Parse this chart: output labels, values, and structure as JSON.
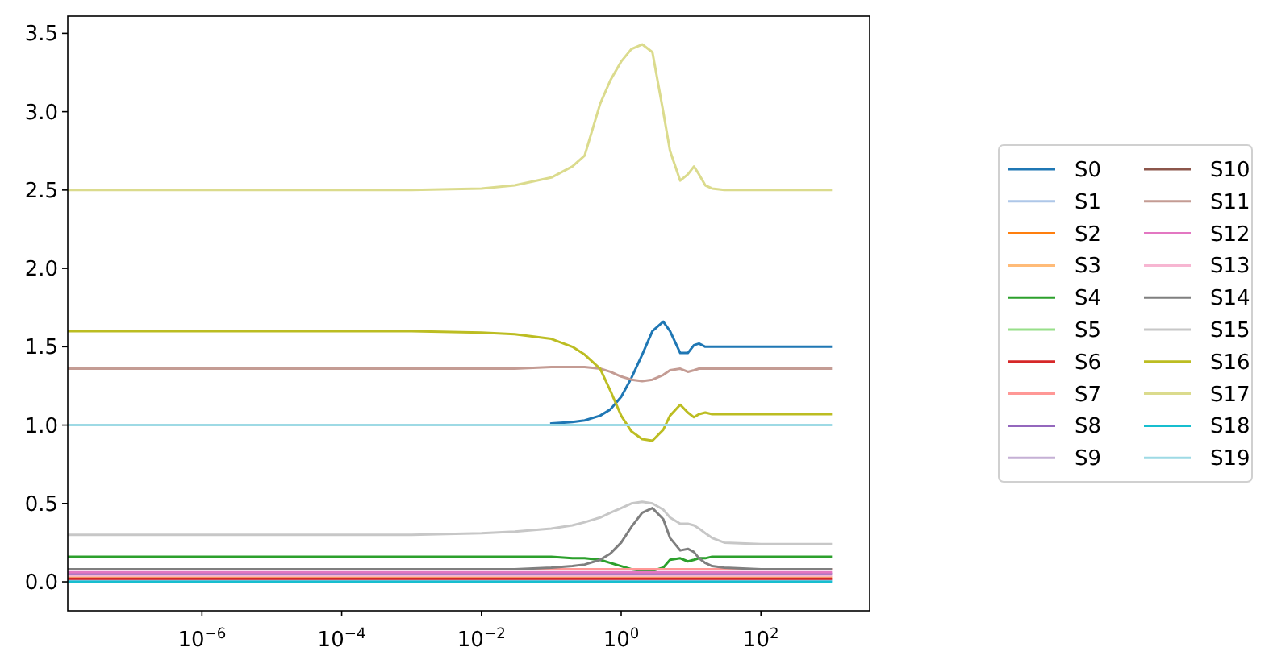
{
  "chart_data": {
    "type": "line",
    "log": "x",
    "legend": "right",
    "grid": false,
    "xlim": [
      1.2e-08,
      3600
    ],
    "ylim": [
      -0.185,
      3.61
    ],
    "xticks": [
      {
        "value": 1e-06,
        "label": "10$^{−6}$"
      },
      {
        "value": 0.0001,
        "label": "10$^{−4}$"
      },
      {
        "value": 0.01,
        "label": "10$^{−2}$"
      },
      {
        "value": 1,
        "label": "10$^{0}$"
      },
      {
        "value": 100,
        "label": "10$^{2}$"
      }
    ],
    "yticks": [
      {
        "value": 0,
        "label": "0.0"
      },
      {
        "value": 0.5,
        "label": "0.5"
      },
      {
        "value": 1,
        "label": "1.0"
      },
      {
        "value": 1.5,
        "label": "1.5"
      },
      {
        "value": 2,
        "label": "2.0"
      },
      {
        "value": 2.5,
        "label": "2.5"
      },
      {
        "value": 3,
        "label": "3.0"
      },
      {
        "value": 3.5,
        "label": "3.5"
      }
    ],
    "x": [
      1.2e-08,
      0.001,
      0.01,
      0.03,
      0.1,
      0.2,
      0.3,
      0.5,
      0.7,
      1,
      1.4,
      2,
      2.8,
      4,
      5,
      7,
      9,
      11,
      13,
      16,
      20,
      30,
      100,
      1000
    ],
    "series": [
      {
        "name": "S0",
        "color": "#1f77b4",
        "values": [
          null,
          null,
          null,
          null,
          1.01,
          1.02,
          1.03,
          1.06,
          1.1,
          1.18,
          1.3,
          1.45,
          1.6,
          1.66,
          1.6,
          1.46,
          1.46,
          1.51,
          1.52,
          1.5,
          1.5,
          1.5,
          1.5,
          1.5
        ]
      },
      {
        "name": "S1",
        "color": "#aec7e8",
        "values": [
          0.01,
          0.01,
          0.01,
          0.01,
          0.01,
          0.01,
          0.01,
          0.01,
          0.01,
          0.01,
          0.01,
          0.01,
          0.01,
          0.01,
          0.01,
          0.01,
          0.01,
          0.01,
          0.01,
          0.01,
          0.01,
          0.01,
          0.01,
          0.01
        ]
      },
      {
        "name": "S2",
        "color": "#ff7f0e",
        "values": [
          null,
          null,
          null,
          null,
          null,
          null,
          null,
          null,
          null,
          null,
          null,
          null,
          null,
          null,
          null,
          null,
          null,
          null,
          null,
          null,
          null,
          null,
          null,
          null
        ]
      },
      {
        "name": "S3",
        "color": "#ffbb78",
        "values": [
          0.03,
          0.03,
          0.03,
          0.03,
          0.03,
          0.03,
          0.03,
          0.03,
          0.03,
          0.03,
          0.03,
          0.03,
          0.03,
          0.03,
          0.03,
          0.03,
          0.03,
          0.03,
          0.03,
          0.03,
          0.03,
          0.03,
          0.03,
          0.03
        ]
      },
      {
        "name": "S4",
        "color": "#2ca02c",
        "values": [
          0.16,
          0.16,
          0.16,
          0.16,
          0.16,
          0.15,
          0.15,
          0.14,
          0.12,
          0.1,
          0.08,
          0.07,
          0.07,
          0.09,
          0.14,
          0.15,
          0.13,
          0.14,
          0.15,
          0.15,
          0.16,
          0.16,
          0.16,
          0.16
        ]
      },
      {
        "name": "S5",
        "color": "#98df8a",
        "values": [
          null,
          null,
          null,
          null,
          null,
          null,
          null,
          null,
          null,
          null,
          null,
          null,
          null,
          null,
          null,
          null,
          null,
          null,
          null,
          null,
          null,
          null,
          null,
          null
        ]
      },
      {
        "name": "S6",
        "color": "#d62728",
        "values": [
          0.02,
          0.02,
          0.02,
          0.02,
          0.02,
          0.02,
          0.02,
          0.02,
          0.02,
          0.02,
          0.02,
          0.02,
          0.02,
          0.02,
          0.02,
          0.02,
          0.02,
          0.02,
          0.02,
          0.02,
          0.02,
          0.02,
          0.02,
          0.02
        ]
      },
      {
        "name": "S7",
        "color": "#ff9896",
        "values": [
          null,
          null,
          0.08,
          0.08,
          0.08,
          0.08,
          0.08,
          0.08,
          0.08,
          0.08,
          0.08,
          0.08,
          0.08,
          0.08,
          0.08,
          0.08,
          0.08,
          0.08,
          0.08,
          0.08,
          0.08,
          0.08,
          0.08,
          0.08
        ]
      },
      {
        "name": "S8",
        "color": "#9467bd",
        "values": [
          0.05,
          0.05,
          0.05,
          0.05,
          0.05,
          0.05,
          0.05,
          0.05,
          0.05,
          0.05,
          0.05,
          0.05,
          0.05,
          0.05,
          0.05,
          0.05,
          0.05,
          0.05,
          0.05,
          0.05,
          0.05,
          0.05,
          0.05,
          0.05
        ]
      },
      {
        "name": "S9",
        "color": "#c5b0d5",
        "values": [
          null,
          null,
          null,
          null,
          null,
          null,
          null,
          null,
          null,
          null,
          null,
          null,
          null,
          null,
          null,
          null,
          null,
          null,
          null,
          null,
          null,
          null,
          null,
          null
        ]
      },
      {
        "name": "S10",
        "color": "#8c564b",
        "values": [
          null,
          null,
          null,
          null,
          null,
          null,
          null,
          null,
          null,
          null,
          null,
          null,
          null,
          null,
          null,
          null,
          null,
          null,
          null,
          null,
          null,
          null,
          null,
          null
        ]
      },
      {
        "name": "S11",
        "color": "#c49c94",
        "values": [
          1.36,
          1.36,
          1.36,
          1.36,
          1.37,
          1.37,
          1.37,
          1.36,
          1.34,
          1.31,
          1.29,
          1.28,
          1.29,
          1.32,
          1.35,
          1.36,
          1.34,
          1.35,
          1.36,
          1.36,
          1.36,
          1.36,
          1.36,
          1.36
        ]
      },
      {
        "name": "S12",
        "color": "#e377c2",
        "values": [
          0.06,
          0.06,
          0.06,
          0.06,
          0.06,
          0.06,
          0.06,
          0.06,
          0.06,
          0.06,
          0.06,
          0.06,
          0.06,
          0.06,
          0.06,
          0.06,
          0.06,
          0.06,
          0.06,
          0.06,
          0.06,
          0.06,
          0.06,
          0.06
        ]
      },
      {
        "name": "S13",
        "color": "#f7b6d2",
        "values": [
          0.04,
          0.04,
          0.04,
          0.04,
          0.04,
          0.04,
          0.04,
          0.04,
          0.04,
          0.04,
          0.04,
          0.04,
          0.04,
          0.04,
          0.04,
          0.04,
          0.04,
          0.04,
          0.04,
          0.04,
          0.04,
          0.04,
          0.04,
          0.04
        ]
      },
      {
        "name": "S14",
        "color": "#7f7f7f",
        "values": [
          0.08,
          0.08,
          0.08,
          0.08,
          0.09,
          0.1,
          0.11,
          0.14,
          0.18,
          0.25,
          0.35,
          0.44,
          0.47,
          0.4,
          0.28,
          0.2,
          0.21,
          0.19,
          0.15,
          0.12,
          0.1,
          0.09,
          0.08,
          0.08
        ]
      },
      {
        "name": "S15",
        "color": "#c7c7c7",
        "values": [
          0.3,
          0.3,
          0.31,
          0.32,
          0.34,
          0.36,
          0.38,
          0.41,
          0.44,
          0.47,
          0.5,
          0.51,
          0.5,
          0.46,
          0.41,
          0.37,
          0.37,
          0.36,
          0.34,
          0.31,
          0.28,
          0.25,
          0.24,
          0.24
        ]
      },
      {
        "name": "S16",
        "color": "#bcbd22",
        "values": [
          1.6,
          1.6,
          1.59,
          1.58,
          1.55,
          1.5,
          1.45,
          1.36,
          1.22,
          1.06,
          0.96,
          0.91,
          0.9,
          0.97,
          1.06,
          1.13,
          1.08,
          1.05,
          1.07,
          1.08,
          1.07,
          1.07,
          1.07,
          1.07
        ]
      },
      {
        "name": "S17",
        "color": "#dbdb8d",
        "values": [
          2.5,
          2.5,
          2.51,
          2.53,
          2.58,
          2.65,
          2.72,
          3.05,
          3.2,
          3.32,
          3.4,
          3.43,
          3.38,
          3.0,
          2.75,
          2.56,
          2.6,
          2.65,
          2.6,
          2.53,
          2.51,
          2.5,
          2.5,
          2.5
        ]
      },
      {
        "name": "S18",
        "color": "#17becf",
        "values": [
          0.0,
          0.0,
          0.0,
          0.0,
          0.0,
          0.0,
          0.0,
          0.0,
          0.0,
          0.0,
          0.0,
          0.0,
          0.0,
          0.0,
          0.0,
          0.0,
          0.0,
          0.0,
          0.0,
          0.0,
          0.0,
          0.0,
          0.0,
          0.0
        ]
      },
      {
        "name": "S19",
        "color": "#9edae5",
        "values": [
          1.0,
          1.0,
          1.0,
          1.0,
          1.0,
          1.0,
          1.0,
          1.0,
          1.0,
          1.0,
          1.0,
          1.0,
          1.0,
          1.0,
          1.0,
          1.0,
          1.0,
          1.0,
          1.0,
          1.0,
          1.0,
          1.0,
          1.0,
          1.0
        ]
      }
    ]
  }
}
